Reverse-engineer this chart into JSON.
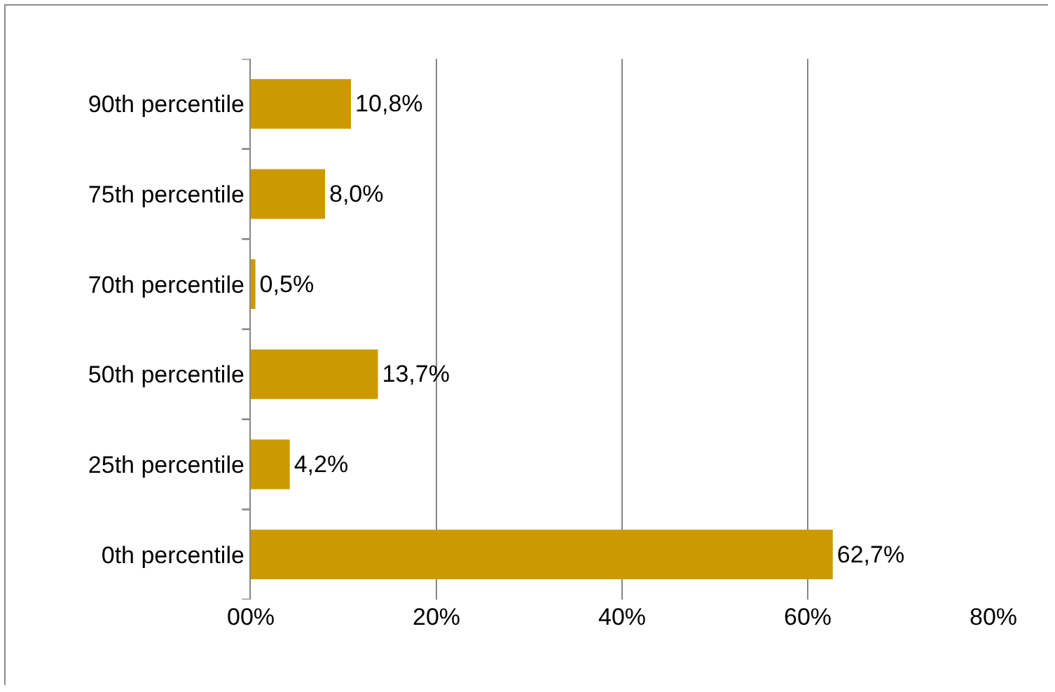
{
  "chart_data": {
    "type": "bar",
    "orientation": "horizontal",
    "categories": [
      "90th percentile",
      "75th percentile",
      "70th percentile",
      "50th percentile",
      "25th percentile",
      "0th percentile"
    ],
    "values": [
      10.8,
      8.0,
      0.5,
      13.7,
      4.2,
      62.7
    ],
    "value_labels": [
      "10,8%",
      "8,0%",
      "0,5%",
      "13,7%",
      "4,2%",
      "62,7%"
    ],
    "color": "#cc9900",
    "xlim": [
      0,
      80
    ],
    "xticks": [
      {
        "value": 0,
        "label": "00%"
      },
      {
        "value": 20,
        "label": "20%"
      },
      {
        "value": 40,
        "label": "40%"
      },
      {
        "value": 60,
        "label": "60%"
      },
      {
        "value": 80,
        "label": "80%"
      }
    ],
    "grid": "x",
    "legend": false
  }
}
